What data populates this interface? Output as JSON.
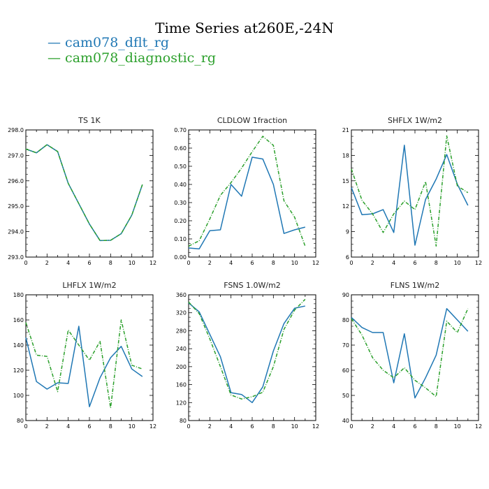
{
  "header": {
    "title": "Time Series at260E,-24N"
  },
  "legend": [
    {
      "label": "cam078_dflt_rg",
      "color": "#1f77b4",
      "symbol": "—"
    },
    {
      "label": "cam078_diagnostic_rg",
      "color": "#2ca02c",
      "symbol": "—"
    }
  ],
  "chart_data": [
    {
      "type": "line",
      "title": "TS   1K",
      "x": [
        0,
        1,
        2,
        3,
        4,
        5,
        6,
        7,
        8,
        9,
        10,
        11
      ],
      "xlim": [
        0,
        12
      ],
      "xticks": [
        0,
        2,
        4,
        6,
        8,
        10,
        12
      ],
      "ylim": [
        293.0,
        298.0
      ],
      "yticks": [
        293.0,
        294.0,
        295.0,
        296.0,
        297.0,
        298.0
      ],
      "ytick_labels": [
        "293.0",
        "294.0",
        "295.0",
        "296.0",
        "297.0",
        "298.0"
      ],
      "series": [
        {
          "name": "cam078_dflt_rg",
          "color": "#1f77b4",
          "dashed": false,
          "values": [
            297.25,
            297.1,
            297.42,
            297.15,
            295.9,
            295.1,
            294.3,
            293.65,
            293.66,
            293.92,
            294.65,
            295.85
          ]
        },
        {
          "name": "cam078_diagnostic_rg",
          "color": "#2ca02c",
          "dashed": true,
          "values": [
            297.25,
            297.1,
            297.42,
            297.15,
            295.9,
            295.1,
            294.3,
            293.65,
            293.66,
            293.92,
            294.65,
            295.85
          ]
        }
      ]
    },
    {
      "type": "line",
      "title": "CLDLOW   1fraction",
      "x": [
        0,
        1,
        2,
        3,
        4,
        5,
        6,
        7,
        8,
        9,
        10,
        11
      ],
      "xlim": [
        0,
        12
      ],
      "xticks": [
        0,
        2,
        4,
        6,
        8,
        10,
        12
      ],
      "ylim": [
        0.0,
        0.7
      ],
      "yticks": [
        0.0,
        0.1,
        0.2,
        0.3,
        0.4,
        0.5,
        0.6,
        0.7
      ],
      "ytick_labels": [
        "0.00",
        "0.10",
        "0.20",
        "0.30",
        "0.40",
        "0.50",
        "0.60",
        "0.70"
      ],
      "series": [
        {
          "name": "cam078_dflt_rg",
          "color": "#1f77b4",
          "dashed": false,
          "values": [
            0.05,
            0.045,
            0.145,
            0.15,
            0.4,
            0.335,
            0.55,
            0.54,
            0.4,
            0.13,
            0.15,
            0.165
          ]
        },
        {
          "name": "cam078_diagnostic_rg",
          "color": "#2ca02c",
          "dashed": true,
          "values": [
            0.06,
            0.09,
            0.21,
            0.34,
            0.41,
            0.49,
            0.58,
            0.665,
            0.615,
            0.31,
            0.22,
            0.06
          ]
        }
      ]
    },
    {
      "type": "line",
      "title": "SHFLX   1W/m2",
      "x": [
        0,
        1,
        2,
        3,
        4,
        5,
        6,
        7,
        8,
        9,
        10,
        11
      ],
      "xlim": [
        0,
        12
      ],
      "xticks": [
        0,
        2,
        4,
        6,
        8,
        10,
        12
      ],
      "ylim": [
        6,
        21
      ],
      "yticks": [
        6,
        9,
        12,
        15,
        18,
        21
      ],
      "ytick_labels": [
        "6",
        "9",
        "12",
        "15",
        "18",
        "21"
      ],
      "series": [
        {
          "name": "cam078_dflt_rg",
          "color": "#1f77b4",
          "dashed": false,
          "values": [
            14.2,
            11.0,
            11.1,
            11.6,
            8.9,
            19.2,
            7.4,
            12.8,
            15.2,
            18.1,
            14.6,
            12.1
          ]
        },
        {
          "name": "cam078_diagnostic_rg",
          "color": "#2ca02c",
          "dashed": true,
          "values": [
            16.4,
            12.7,
            11.1,
            8.9,
            11.1,
            12.6,
            11.6,
            14.9,
            7.3,
            20.3,
            14.4,
            13.6
          ]
        }
      ]
    },
    {
      "type": "line",
      "title": "LHFLX   1W/m2",
      "x": [
        0,
        1,
        2,
        3,
        4,
        5,
        6,
        7,
        8,
        9,
        10,
        11
      ],
      "xlim": [
        0,
        12
      ],
      "xticks": [
        0,
        2,
        4,
        6,
        8,
        10,
        12
      ],
      "ylim": [
        80,
        180
      ],
      "yticks": [
        80,
        100,
        120,
        140,
        160,
        180
      ],
      "ytick_labels": [
        "80",
        "100",
        "120",
        "140",
        "160",
        "180"
      ],
      "series": [
        {
          "name": "cam078_dflt_rg",
          "color": "#1f77b4",
          "dashed": false,
          "values": [
            146,
            111,
            105,
            110,
            109.5,
            155,
            91,
            114,
            130,
            139,
            121,
            115
          ]
        },
        {
          "name": "cam078_diagnostic_rg",
          "color": "#2ca02c",
          "dashed": true,
          "values": [
            158,
            132,
            131,
            103,
            152,
            140,
            128,
            143,
            90,
            160,
            124,
            121
          ]
        }
      ]
    },
    {
      "type": "line",
      "title": "FSNS   1.0W/m2",
      "x": [
        0,
        1,
        2,
        3,
        4,
        5,
        6,
        7,
        8,
        9,
        10,
        11
      ],
      "xlim": [
        0,
        12
      ],
      "xticks": [
        0,
        2,
        4,
        6,
        8,
        10,
        12
      ],
      "ylim": [
        80,
        360
      ],
      "yticks": [
        80,
        120,
        160,
        200,
        240,
        280,
        320,
        360
      ],
      "ytick_labels": [
        "80",
        "120",
        "160",
        "200",
        "240",
        "280",
        "320",
        "360"
      ],
      "series": [
        {
          "name": "cam078_dflt_rg",
          "color": "#1f77b4",
          "dashed": false,
          "values": [
            342,
            322,
            272,
            222,
            142,
            138,
            120,
            155,
            235,
            296,
            330,
            335
          ]
        },
        {
          "name": "cam078_diagnostic_rg",
          "color": "#2ca02c",
          "dashed": true,
          "values": [
            344,
            318,
            262,
            200,
            137,
            128,
            133,
            143,
            200,
            283,
            326,
            350
          ]
        }
      ]
    },
    {
      "type": "line",
      "title": "FLNS   1W/m2",
      "x": [
        0,
        1,
        2,
        3,
        4,
        5,
        6,
        7,
        8,
        9,
        10,
        11
      ],
      "xlim": [
        0,
        12
      ],
      "xticks": [
        0,
        2,
        4,
        6,
        8,
        10,
        12
      ],
      "ylim": [
        40,
        90
      ],
      "yticks": [
        40,
        50,
        60,
        70,
        80,
        90
      ],
      "ytick_labels": [
        "40",
        "50",
        "60",
        "70",
        "80",
        "90"
      ],
      "series": [
        {
          "name": "cam078_dflt_rg",
          "color": "#1f77b4",
          "dashed": false,
          "values": [
            81,
            77,
            75,
            75,
            55,
            74.5,
            49,
            57,
            66,
            84.5,
            80,
            75.5
          ]
        },
        {
          "name": "cam078_diagnostic_rg",
          "color": "#2ca02c",
          "dashed": true,
          "values": [
            80.5,
            74,
            65,
            60,
            57,
            61,
            56,
            53,
            49.5,
            79.5,
            75,
            84.5
          ]
        }
      ]
    }
  ]
}
